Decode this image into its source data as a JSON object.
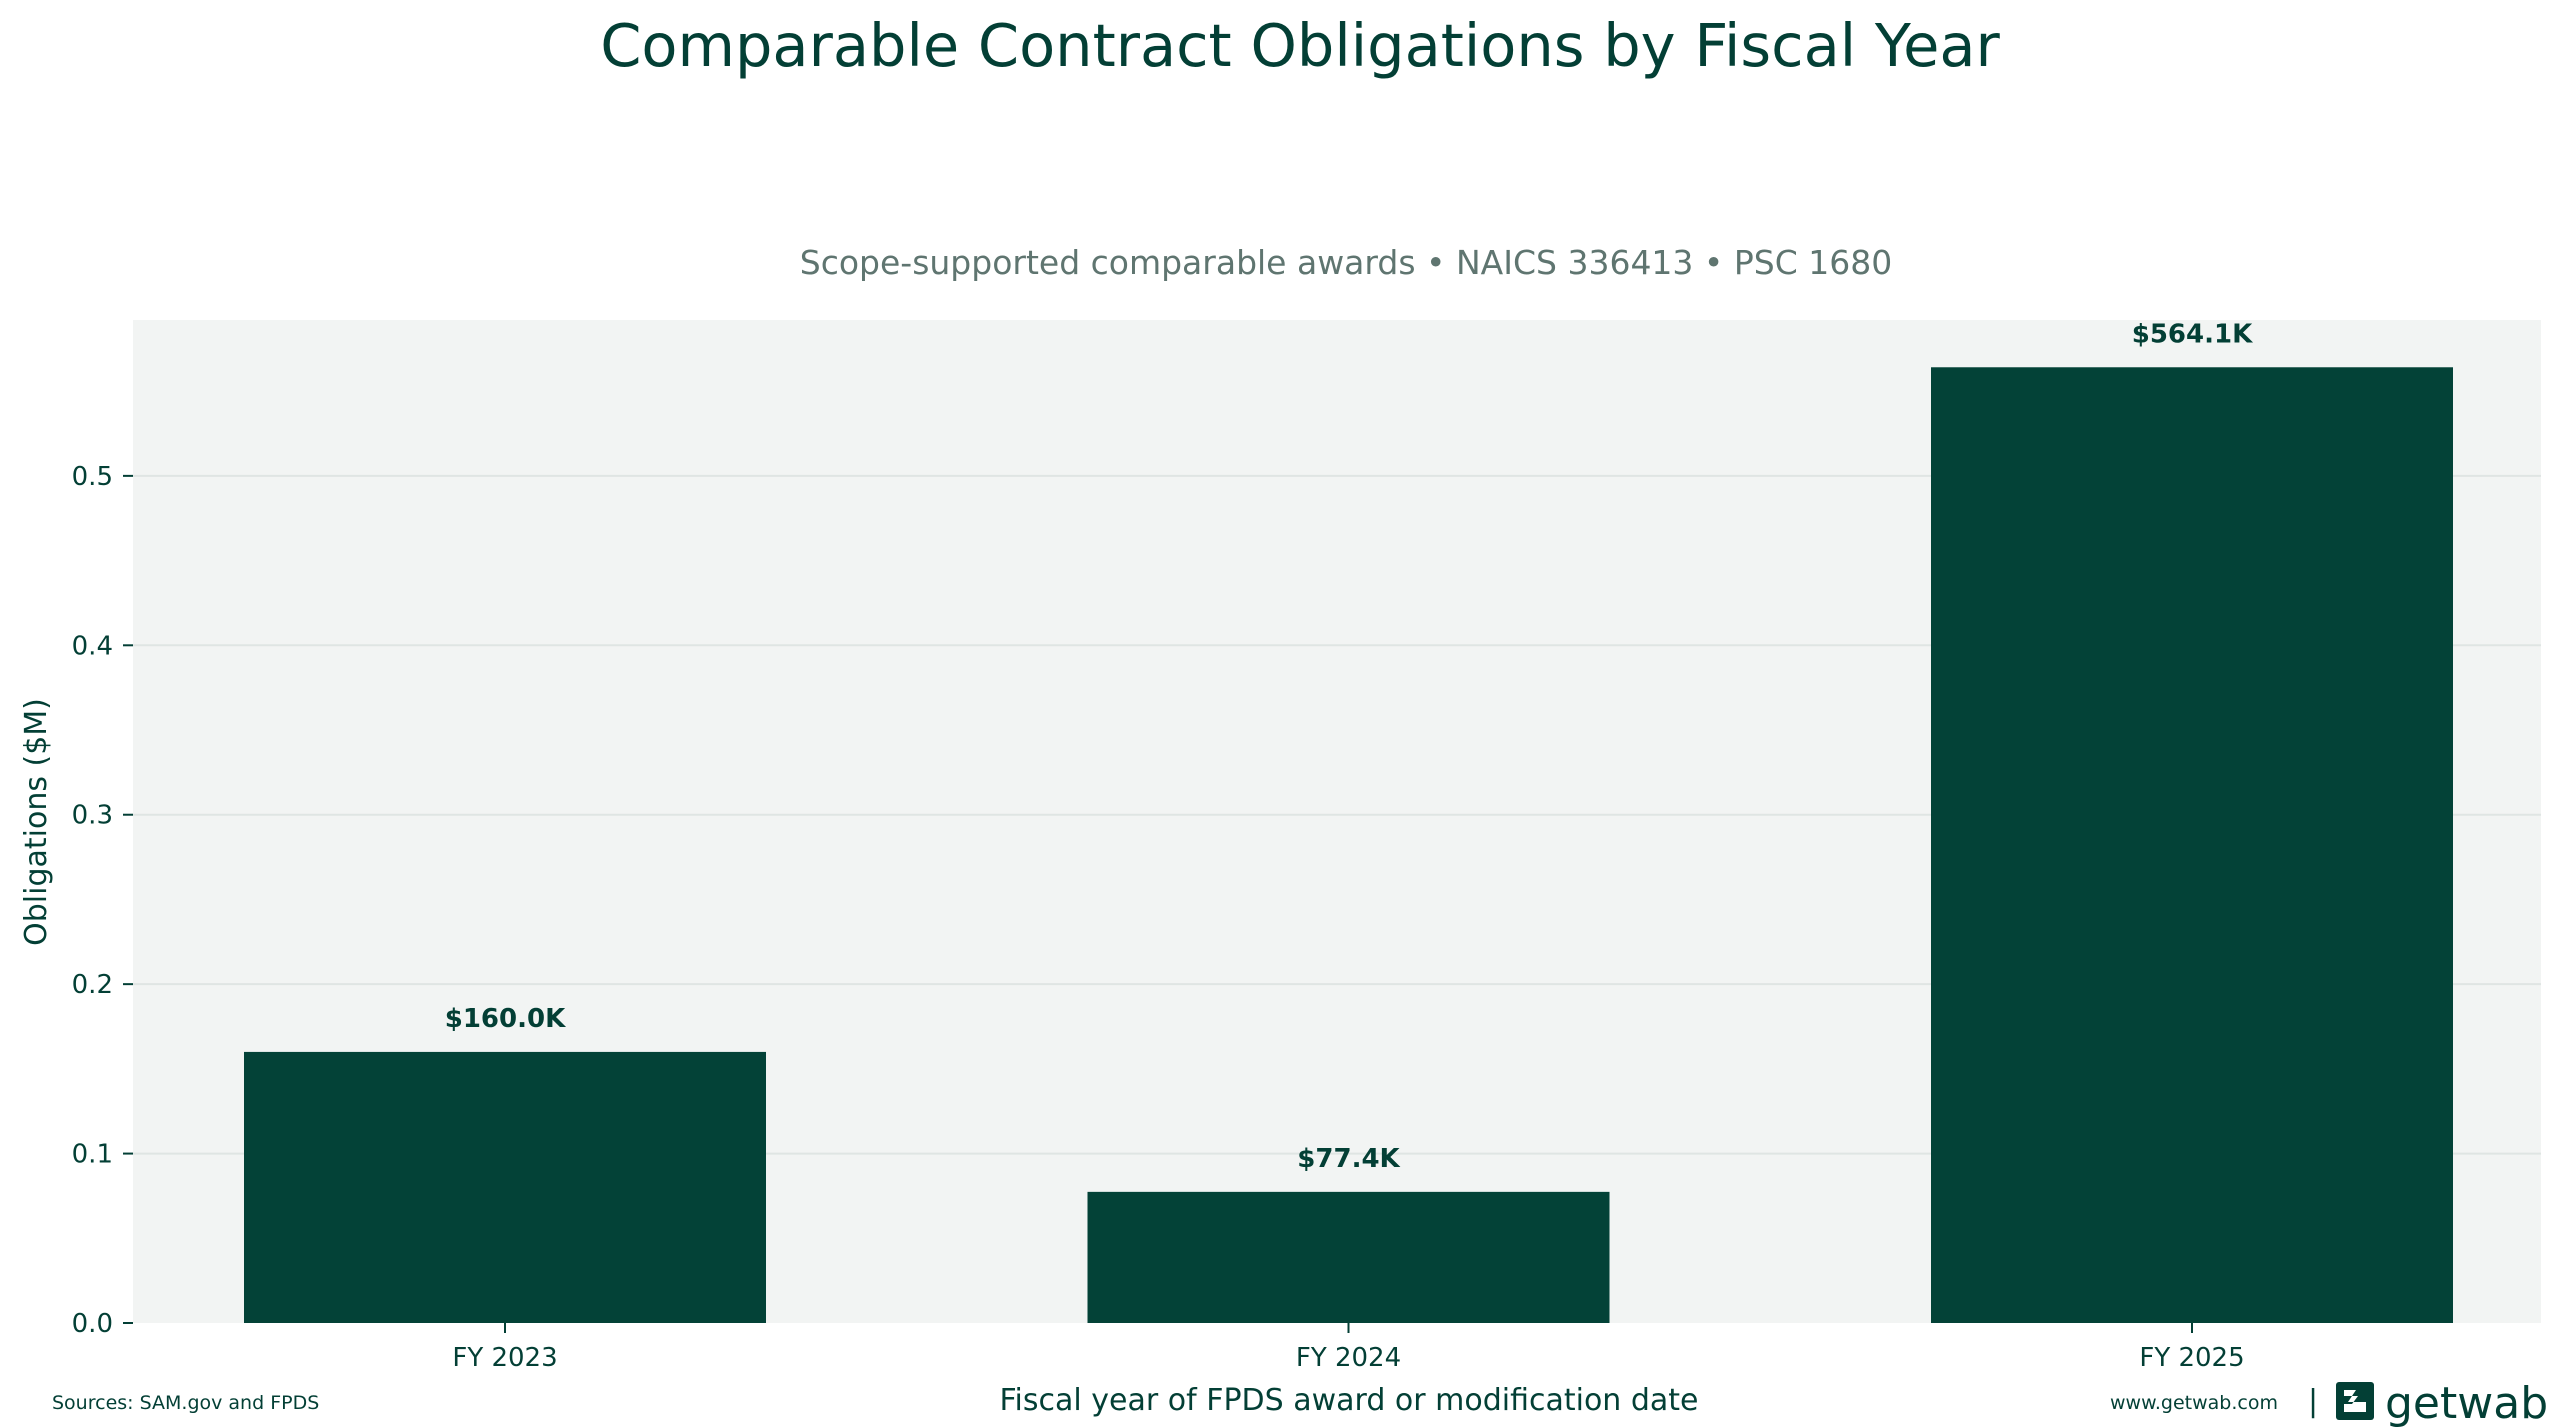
{
  "chart_data": {
    "type": "bar",
    "title": "Comparable Contract Obligations by Fiscal Year",
    "subtitle": "Scope-supported comparable awards • NAICS 336413 • PSC 1680",
    "xlabel": "Fiscal year of FPDS award or modification date",
    "ylabel": "Obligations ($M)",
    "categories": [
      "FY 2023",
      "FY 2024",
      "FY 2025"
    ],
    "values": [
      0.16,
      0.0774,
      0.5641
    ],
    "value_labels": [
      "$160.0K",
      "$77.4K",
      "$564.1K"
    ],
    "ylim": [
      0,
      0.592
    ],
    "yticks": [
      0.0,
      0.1,
      0.2,
      0.3,
      0.4,
      0.5
    ],
    "ytick_labels": [
      "0.0",
      "0.1",
      "0.2",
      "0.3",
      "0.4",
      "0.5"
    ],
    "grid": true,
    "colors": {
      "bar": "#034237",
      "plot_background": "#f2f4f3",
      "grid": "#dfe5e3",
      "text": "#033f35",
      "subtitle": "#5f7570"
    }
  },
  "footer": {
    "sources": "Sources: SAM.gov and FPDS",
    "website": "www.getwab.com",
    "separator": "|",
    "brand": "getwab",
    "logo_icon": "getwab-logo-icon"
  }
}
